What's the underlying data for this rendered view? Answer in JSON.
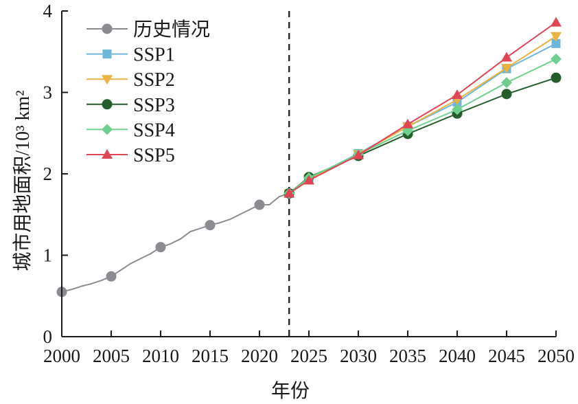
{
  "chart_data": {
    "type": "line",
    "xlabel": "年份",
    "ylabel": "城市用地面积/10³ km²",
    "xlim": [
      2000,
      2050
    ],
    "ylim": [
      0,
      4
    ],
    "x_ticks": [
      "2000",
      "2005",
      "2010",
      "2015",
      "2020",
      "2025",
      "2030",
      "2035",
      "2040",
      "2045",
      "2050"
    ],
    "y_ticks": [
      "0",
      "1",
      "2",
      "3",
      "4"
    ],
    "divider_x": 2023,
    "legend_position": "top-left",
    "grid": false,
    "series": [
      {
        "name": "历史情况",
        "color": "#8a8c92",
        "marker": "circle",
        "x": [
          2000,
          2001,
          2002,
          2003,
          2004,
          2005,
          2006,
          2007,
          2008,
          2009,
          2010,
          2011,
          2012,
          2013,
          2014,
          2015,
          2016,
          2017,
          2018,
          2019,
          2020,
          2021,
          2022,
          2023
        ],
        "values": [
          0.55,
          0.58,
          0.62,
          0.65,
          0.69,
          0.74,
          0.82,
          0.9,
          0.96,
          1.02,
          1.1,
          1.14,
          1.2,
          1.29,
          1.33,
          1.37,
          1.4,
          1.44,
          1.5,
          1.56,
          1.62,
          1.62,
          1.72,
          1.76
        ],
        "marker_x": [
          2000,
          2005,
          2010,
          2015,
          2020,
          2023
        ]
      },
      {
        "name": "SSP1",
        "color": "#6fb6d9",
        "marker": "square",
        "x": [
          2023,
          2025,
          2030,
          2035,
          2040,
          2045,
          2050
        ],
        "values": [
          1.76,
          1.94,
          2.25,
          2.58,
          2.88,
          3.29,
          3.6
        ]
      },
      {
        "name": "SSP2",
        "color": "#e8b341",
        "marker": "triangle-down",
        "x": [
          2023,
          2025,
          2030,
          2035,
          2040,
          2045,
          2050
        ],
        "values": [
          1.76,
          1.94,
          2.24,
          2.58,
          2.91,
          3.3,
          3.69
        ]
      },
      {
        "name": "SSP3",
        "color": "#255e2b",
        "marker": "circle",
        "x": [
          2023,
          2025,
          2030,
          2035,
          2040,
          2045,
          2050
        ],
        "values": [
          1.76,
          1.96,
          2.22,
          2.49,
          2.74,
          2.98,
          3.18
        ]
      },
      {
        "name": "SSP4",
        "color": "#6fcf8f",
        "marker": "diamond",
        "x": [
          2023,
          2025,
          2030,
          2035,
          2040,
          2045,
          2050
        ],
        "values": [
          1.76,
          1.95,
          2.24,
          2.53,
          2.79,
          3.12,
          3.41
        ]
      },
      {
        "name": "SSP5",
        "color": "#e04555",
        "marker": "triangle-up",
        "x": [
          2023,
          2025,
          2030,
          2035,
          2040,
          2045,
          2050
        ],
        "values": [
          1.76,
          1.92,
          2.23,
          2.61,
          2.97,
          3.43,
          3.86
        ]
      }
    ]
  }
}
